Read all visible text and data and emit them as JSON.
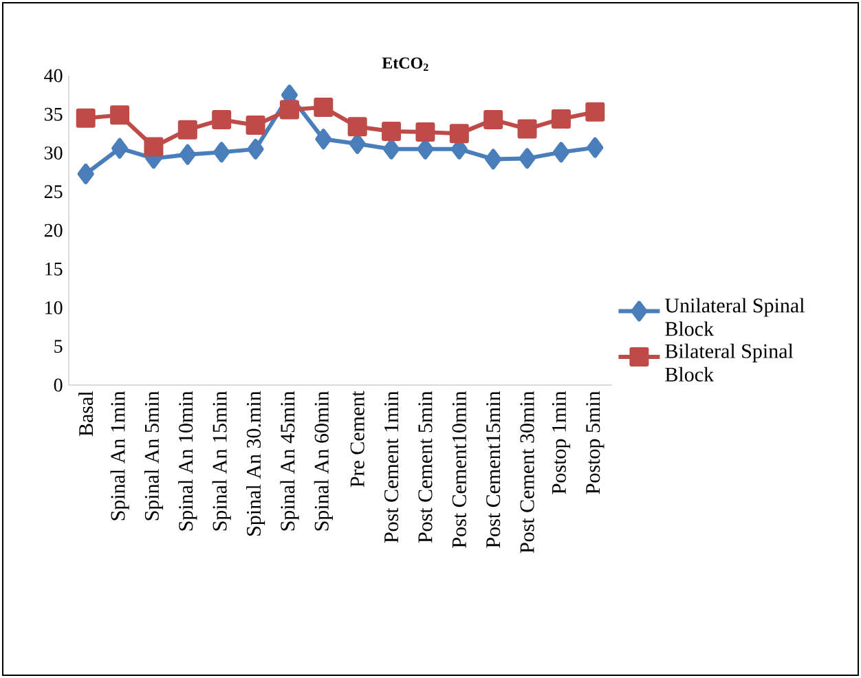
{
  "chart_data": {
    "type": "line",
    "title": "EtCO$_{2}$",
    "categories": [
      "Basal",
      "Spinal An 1min",
      "Spinal An 5min",
      "Spinal An 10min",
      "Spinal An 15min",
      "Spinal An 30.min",
      "Spinal An 45min",
      "Spinal An  60min",
      "Pre Cement",
      "Post Cement 1min",
      "Post Cement 5min",
      "Post Cement10min",
      "Post Cement15min",
      "Post Cement 30min",
      "Postop 1min",
      "Postop 5min"
    ],
    "series": [
      {
        "name": "Unilateral Spinal Block",
        "color": "#4a7ebb",
        "marker": "diamond",
        "values": [
          27.3,
          30.6,
          29.3,
          29.8,
          30.1,
          30.5,
          37.5,
          31.8,
          31.2,
          30.5,
          30.5,
          30.5,
          29.2,
          29.3,
          30.1,
          30.7
        ]
      },
      {
        "name": "Bilateral Spinal Block",
        "color": "#be4b48",
        "marker": "square",
        "values": [
          34.5,
          34.9,
          30.8,
          33.0,
          34.3,
          33.6,
          35.6,
          35.9,
          33.4,
          32.8,
          32.7,
          32.5,
          34.3,
          33.1,
          34.4,
          35.3
        ]
      }
    ],
    "ylim": [
      0,
      40
    ],
    "yticks": [
      0,
      5,
      10,
      15,
      20,
      25,
      30,
      35,
      40
    ],
    "grid": false,
    "legend": "right",
    "line_style": "solid"
  }
}
